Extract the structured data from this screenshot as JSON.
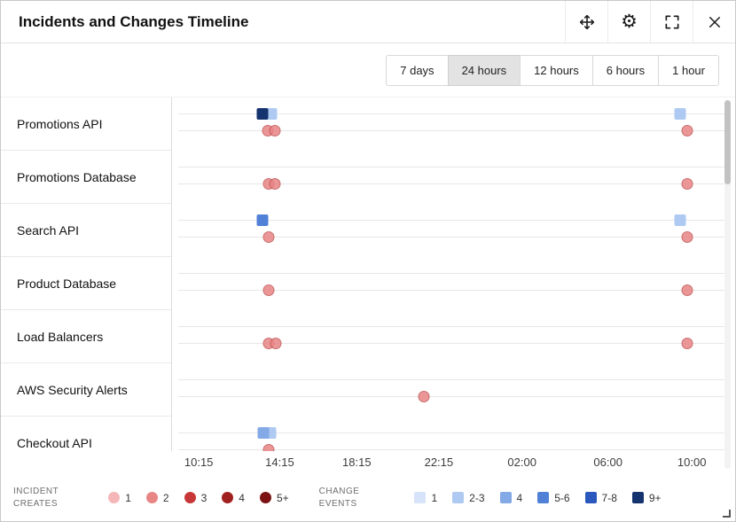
{
  "header": {
    "title": "Incidents and Changes Timeline",
    "icons": [
      "move-icon",
      "gear-icon",
      "fullscreen-icon",
      "close-icon"
    ]
  },
  "range_buttons": [
    {
      "label": "7 days",
      "selected": false
    },
    {
      "label": "24 hours",
      "selected": true
    },
    {
      "label": "12 hours",
      "selected": false
    },
    {
      "label": "6 hours",
      "selected": false
    },
    {
      "label": "1 hour",
      "selected": false
    }
  ],
  "chart_data": {
    "type": "timeline",
    "title": "Incidents and Changes Timeline",
    "x_ticks": [
      {
        "label": "10:15",
        "pos": 4.6
      },
      {
        "label": "14:15",
        "pos": 19.0
      },
      {
        "label": "18:15",
        "pos": 32.7
      },
      {
        "label": "22:15",
        "pos": 47.3
      },
      {
        "label": "02:00",
        "pos": 62.1
      },
      {
        "label": "06:00",
        "pos": 77.4
      },
      {
        "label": "10:00",
        "pos": 92.3
      }
    ],
    "rows": [
      {
        "label": "Promotions API",
        "changes": [
          {
            "pos": 17.6,
            "level": "2-3"
          },
          {
            "pos": 16.0,
            "level": "9+"
          },
          {
            "pos": 90.3,
            "level": "2-3"
          }
        ],
        "incidents": [
          {
            "pos": 17.0,
            "level": "2"
          },
          {
            "pos": 18.2,
            "level": "2"
          },
          {
            "pos": 91.5,
            "level": "2"
          }
        ]
      },
      {
        "label": "Promotions Database",
        "changes": [],
        "incidents": [
          {
            "pos": 17.1,
            "level": "2"
          },
          {
            "pos": 18.2,
            "level": "2"
          },
          {
            "pos": 91.5,
            "level": "2"
          }
        ]
      },
      {
        "label": "Search API",
        "changes": [
          {
            "pos": 16.0,
            "level": "5-6"
          },
          {
            "pos": 90.3,
            "level": "2-3"
          }
        ],
        "incidents": [
          {
            "pos": 17.1,
            "level": "2"
          },
          {
            "pos": 91.5,
            "level": "2"
          }
        ]
      },
      {
        "label": "Product Database",
        "changes": [],
        "incidents": [
          {
            "pos": 17.1,
            "level": "2"
          },
          {
            "pos": 91.5,
            "level": "2"
          }
        ]
      },
      {
        "label": "Load Balancers",
        "changes": [],
        "incidents": [
          {
            "pos": 17.1,
            "level": "2"
          },
          {
            "pos": 18.4,
            "level": "2"
          },
          {
            "pos": 91.5,
            "level": "2"
          }
        ]
      },
      {
        "label": "AWS Security Alerts",
        "changes": [],
        "incidents": [
          {
            "pos": 44.7,
            "level": "2"
          }
        ]
      },
      {
        "label": "Checkout API",
        "changes": [
          {
            "pos": 17.5,
            "level": "2-3"
          },
          {
            "pos": 16.2,
            "level": "4"
          }
        ],
        "incidents": [
          {
            "pos": 17.1,
            "level": "2"
          }
        ]
      }
    ]
  },
  "legend": {
    "incident_title_line1": "INCIDENT",
    "incident_title_line2": "CREATES",
    "change_title_line1": "CHANGE",
    "change_title_line2": "EVENTS",
    "incident_items": [
      "1",
      "2",
      "3",
      "4",
      "5+"
    ],
    "change_items": [
      "1",
      "2-3",
      "4",
      "5-6",
      "7-8",
      "9+"
    ],
    "incident_levels": {
      "1": "#f4b6b6",
      "2": "#e88585",
      "3": "#c83737",
      "4": "#a02020",
      "5+": "#7c1212"
    },
    "change_levels": {
      "1": "#d7e3f8",
      "2-3": "#aecaf2",
      "4": "#83a9e6",
      "5-6": "#5081d6",
      "7-8": "#2a58bd",
      "9+": "#15336f"
    }
  }
}
